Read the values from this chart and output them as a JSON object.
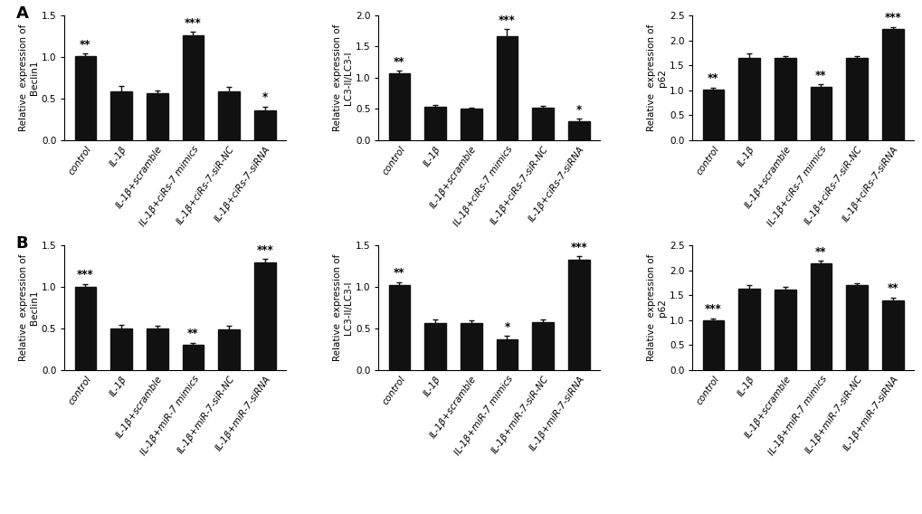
{
  "panel_A": {
    "beclin1": {
      "ylabel": "Relative  expression of\nBeclin1",
      "ylim": [
        0,
        1.5
      ],
      "yticks": [
        0.0,
        0.5,
        1.0,
        1.5
      ],
      "categories": [
        "control",
        "IL-1β",
        "IL-1β+scramble",
        "IL-1β+ciRs-7 mimics",
        "IL-1β+ciRs-7-siR-NC",
        "IL-1β+ciRs-7-siRNA"
      ],
      "values": [
        1.01,
        0.58,
        0.56,
        1.26,
        0.58,
        0.35
      ],
      "errors": [
        0.03,
        0.07,
        0.03,
        0.04,
        0.06,
        0.05
      ],
      "significance": [
        "**",
        "",
        "",
        "***",
        "",
        "*"
      ]
    },
    "lc3": {
      "ylabel": "Relative  expression of\nLC3-II/LC3-I",
      "ylim": [
        0,
        2.0
      ],
      "yticks": [
        0.0,
        0.5,
        1.0,
        1.5,
        2.0
      ],
      "categories": [
        "control",
        "IL-1β",
        "IL-1β+scramble",
        "IL-1β+ciRs-7 mimics",
        "IL-1β+ciRs-7-siR-NC",
        "IL-1β+ciRs-7-siRNA"
      ],
      "values": [
        1.07,
        0.53,
        0.5,
        1.66,
        0.52,
        0.3
      ],
      "errors": [
        0.04,
        0.03,
        0.02,
        0.12,
        0.03,
        0.04
      ],
      "significance": [
        "**",
        "",
        "",
        "***",
        "",
        "*"
      ]
    },
    "p62": {
      "ylabel": "Relative  expression of\np62",
      "ylim": [
        0,
        2.5
      ],
      "yticks": [
        0.0,
        0.5,
        1.0,
        1.5,
        2.0,
        2.5
      ],
      "categories": [
        "control",
        "IL-1β",
        "IL-1β+scramble",
        "IL-1β+ciRs-7 mimics",
        "IL-1β+ciRs-7-siR-NC",
        "IL-1β+ciRs-7-siRNA"
      ],
      "values": [
        1.01,
        1.64,
        1.65,
        1.06,
        1.64,
        2.22
      ],
      "errors": [
        0.04,
        0.1,
        0.04,
        0.05,
        0.05,
        0.05
      ],
      "significance": [
        "**",
        "",
        "",
        "**",
        "",
        "***"
      ]
    }
  },
  "panel_B": {
    "beclin1": {
      "ylabel": "Relative  expression of\nBeclin1",
      "ylim": [
        0,
        1.5
      ],
      "yticks": [
        0.0,
        0.5,
        1.0,
        1.5
      ],
      "categories": [
        "control",
        "IL-1β",
        "IL-1β+scramble",
        "IL-1β+miR-7 mimics",
        "IL-1β+miR-7-siR-NC",
        "IL-1β+miR-7-siRNA"
      ],
      "values": [
        1.0,
        0.5,
        0.5,
        0.3,
        0.49,
        1.3
      ],
      "errors": [
        0.04,
        0.04,
        0.03,
        0.03,
        0.04,
        0.04
      ],
      "significance": [
        "***",
        "",
        "",
        "**",
        "",
        "***"
      ]
    },
    "lc3": {
      "ylabel": "Relative  expression of\nLC3-II/LC3-I",
      "ylim": [
        0,
        1.5
      ],
      "yticks": [
        0.0,
        0.5,
        1.0,
        1.5
      ],
      "categories": [
        "control",
        "IL-1β",
        "IL-1β+scramble",
        "IL-1β+miR-7 mimics",
        "IL-1β+miR-7-siR-NC",
        "IL-1β+miR-7-siRNA"
      ],
      "values": [
        1.02,
        0.57,
        0.57,
        0.37,
        0.58,
        1.33
      ],
      "errors": [
        0.04,
        0.04,
        0.03,
        0.04,
        0.03,
        0.04
      ],
      "significance": [
        "**",
        "",
        "",
        "*",
        "",
        "***"
      ]
    },
    "p62": {
      "ylabel": "Relative  expression of\np62",
      "ylim": [
        0,
        2.5
      ],
      "yticks": [
        0.0,
        0.5,
        1.0,
        1.5,
        2.0,
        2.5
      ],
      "categories": [
        "control",
        "IL-1β",
        "IL-1β+scramble",
        "IL-1β+miR-7 mimics",
        "IL-1β+miR-7-siR-NC",
        "IL-1β+miR-7-siRNA"
      ],
      "values": [
        1.0,
        1.64,
        1.62,
        2.14,
        1.7,
        1.4
      ],
      "errors": [
        0.04,
        0.06,
        0.05,
        0.06,
        0.05,
        0.06
      ],
      "significance": [
        "***",
        "",
        "",
        "**",
        "",
        "**"
      ]
    }
  },
  "bar_color": "#111111",
  "error_color": "#111111",
  "background_color": "#ffffff",
  "label_fontsize": 7.5,
  "tick_fontsize": 7.5,
  "sig_fontsize": 8.5,
  "panel_label_fontsize": 13,
  "figsize": [
    10.2,
    5.68
  ],
  "dpi": 100
}
